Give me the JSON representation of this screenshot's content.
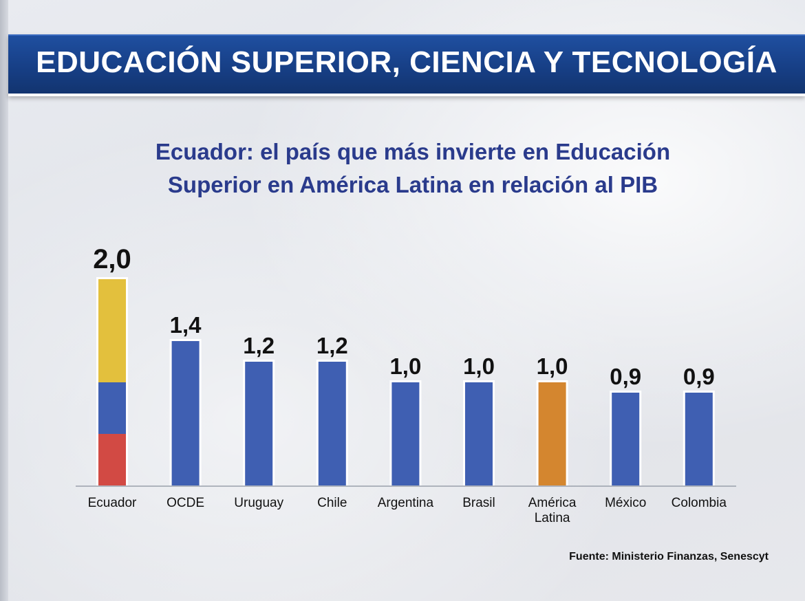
{
  "header": {
    "title": "EDUCACIÓN SUPERIOR, CIENCIA Y TECNOLOGÍA"
  },
  "subtitle": {
    "line1": "Ecuador: el país que más invierte en Educación",
    "line2": "Superior en América Latina en relación al PIB"
  },
  "source": "Fuente: Ministerio Finanzas, Senescyt",
  "chart_data": {
    "type": "bar",
    "categories": [
      "Ecuador",
      "OCDE",
      "Uruguay",
      "Chile",
      "Argentina",
      "Brasil",
      "América Latina",
      "México",
      "Colombia"
    ],
    "category_lines": [
      [
        "Ecuador"
      ],
      [
        "OCDE"
      ],
      [
        "Uruguay"
      ],
      [
        "Chile"
      ],
      [
        "Argentina"
      ],
      [
        "Brasil"
      ],
      [
        "América",
        "Latina"
      ],
      [
        "México"
      ],
      [
        "Colombia"
      ]
    ],
    "values": [
      2.0,
      1.4,
      1.2,
      1.2,
      1.0,
      1.0,
      1.0,
      0.9,
      0.9
    ],
    "value_labels": [
      "2,0",
      "1,4",
      "1,2",
      "1,2",
      "1,0",
      "1,0",
      "1,0",
      "0,9",
      "0,9"
    ],
    "bar_colors": [
      "#3f5fb2",
      "#3f5fb2",
      "#3f5fb2",
      "#3f5fb2",
      "#3f5fb2",
      "#3f5fb2",
      "#d4862f",
      "#3f5fb2",
      "#3f5fb2"
    ],
    "flag_bar": {
      "category": "Ecuador",
      "stripes_top_to_bottom": [
        "#e3c03d",
        "#3f5fb2",
        "#d24a44"
      ],
      "fractions": [
        0.5,
        0.25,
        0.25
      ]
    },
    "ylim": [
      0,
      2.0
    ],
    "grid": false,
    "title": "",
    "xlabel": "",
    "ylabel": ""
  }
}
